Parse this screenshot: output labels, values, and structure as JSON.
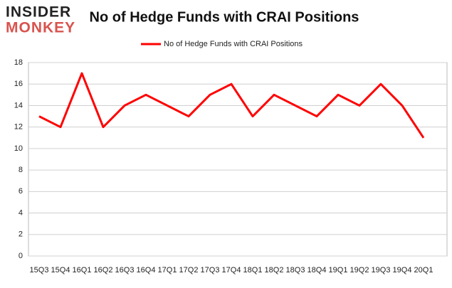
{
  "logo": {
    "line1": "INSIDER",
    "line2": "MONKEY"
  },
  "chart_data": {
    "type": "line",
    "title": "No of Hedge Funds with CRAI Positions",
    "categories": [
      "15Q3",
      "15Q4",
      "16Q1",
      "16Q2",
      "16Q3",
      "16Q4",
      "17Q1",
      "17Q2",
      "17Q3",
      "17Q4",
      "18Q1",
      "18Q2",
      "18Q3",
      "18Q4",
      "19Q1",
      "19Q2",
      "19Q3",
      "19Q4",
      "20Q1"
    ],
    "series": [
      {
        "name": "No of Hedge Funds with CRAI Positions",
        "color": "#ff0000",
        "values": [
          13,
          12,
          17,
          12,
          14,
          15,
          14,
          13,
          15,
          16,
          13,
          15,
          14,
          13,
          15,
          14,
          16,
          14,
          11
        ]
      }
    ],
    "ylim": [
      0,
      18
    ],
    "yticks": [
      0,
      2,
      4,
      6,
      8,
      10,
      12,
      14,
      16,
      18
    ],
    "grid": true,
    "legend": "top"
  }
}
